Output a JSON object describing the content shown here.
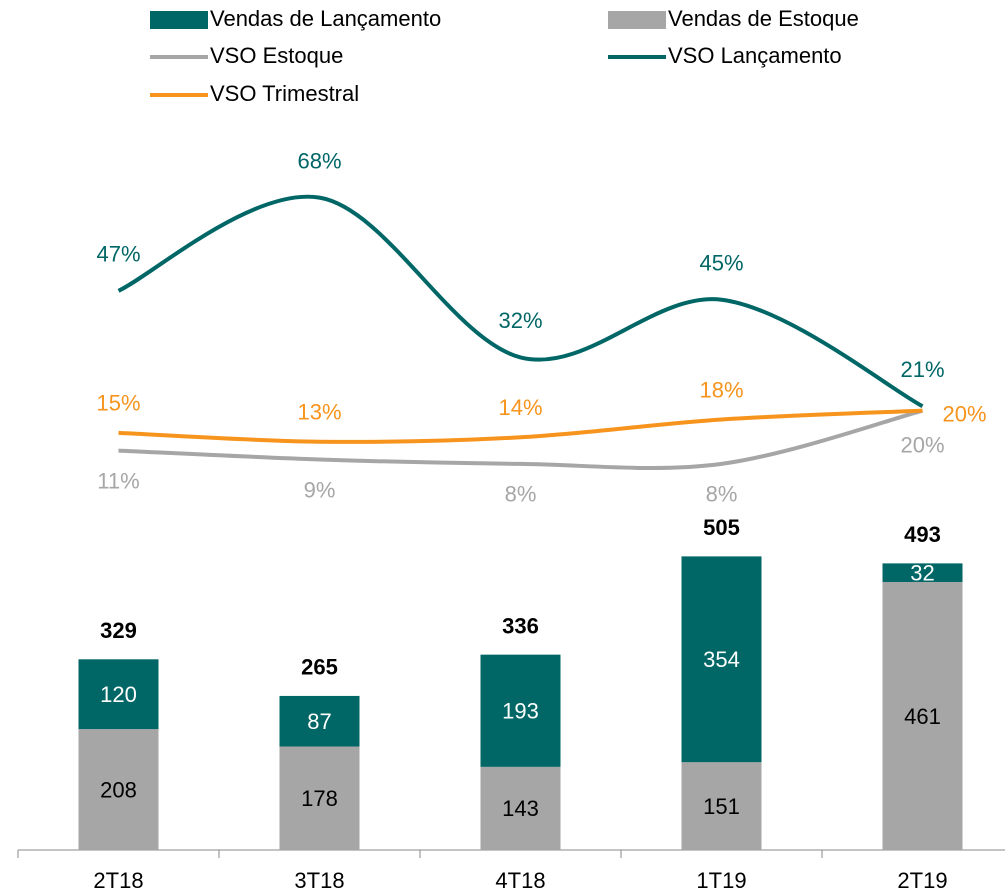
{
  "chart_data": {
    "type": "bar",
    "categories": [
      "2T18",
      "3T18",
      "4T18",
      "1T19",
      "2T19"
    ],
    "series": [
      {
        "name": "Vendas de Lançamento",
        "type": "bar",
        "color": "#006666",
        "values": [
          120,
          87,
          193,
          354,
          32
        ]
      },
      {
        "name": "Vendas de Estoque",
        "type": "bar",
        "color": "#a6a6a6",
        "values": [
          208,
          178,
          143,
          151,
          461
        ]
      },
      {
        "name": "VSO Estoque",
        "type": "line",
        "axis": "y2",
        "color": "#a6a6a6",
        "values": [
          11,
          9,
          8,
          8,
          20
        ],
        "value_labels": [
          "11%",
          "9%",
          "8%",
          "8%",
          "20%"
        ]
      },
      {
        "name": "VSO Lançamento",
        "type": "line",
        "axis": "y2",
        "color": "#006666",
        "values": [
          47,
          68,
          32,
          45,
          21
        ],
        "value_labels": [
          "47%",
          "68%",
          "32%",
          "45%",
          "21%"
        ]
      },
      {
        "name": "VSO Trimestral",
        "type": "line",
        "axis": "y2",
        "color": "#f7941d",
        "values": [
          15,
          13,
          14,
          18,
          20
        ],
        "value_labels": [
          "15%",
          "13%",
          "14%",
          "18%",
          "20%"
        ]
      }
    ],
    "totals": [
      329,
      265,
      336,
      505,
      493
    ],
    "ylim": [
      0,
      1290
    ],
    "y2lim": [
      -79,
      90
    ]
  }
}
